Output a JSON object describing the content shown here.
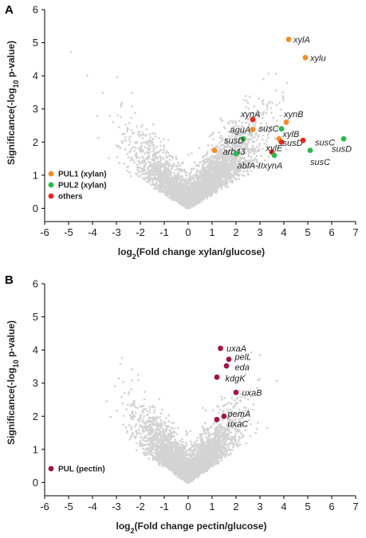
{
  "colors": {
    "background_points": "#d3d3d3",
    "PUL1": "#f28c28",
    "PUL2": "#2db84a",
    "others": "#e8281e",
    "PUL_pectin": "#a3144a",
    "axis": "#000000"
  },
  "chart_data": [
    {
      "panel": "A",
      "type": "scatter",
      "xlabel_prefix": "log",
      "xlabel_sub": "2",
      "xlabel_rest": "(Fold change xylan/glucose)",
      "ylabel_prefix": "Significance(-log",
      "ylabel_sub": "10",
      "ylabel_rest": " p-value)",
      "xlim": [
        -6,
        7
      ],
      "ylim": [
        -0.4,
        6
      ],
      "xticks": [
        -6,
        -5,
        -4,
        -3,
        -2,
        -1,
        0,
        1,
        2,
        3,
        4,
        5,
        6,
        7
      ],
      "yticks": [
        0,
        1,
        2,
        3,
        4,
        5,
        6
      ],
      "background_cloud": "dense grey volcano cloud of genes",
      "legend": [
        {
          "label": "PUL1 (xylan)",
          "color": "#f28c28"
        },
        {
          "label": "PUL2 (xylan)",
          "color": "#2db84a"
        },
        {
          "label": "others",
          "color": "#e8281e"
        }
      ],
      "highlighted": [
        {
          "label": "xylA",
          "x": 4.2,
          "y": 5.1,
          "color": "#f28c28",
          "lx": 4.4,
          "ly": 5.1
        },
        {
          "label": "xylu",
          "x": 4.9,
          "y": 4.55,
          "color": "#f28c28",
          "lx": 5.1,
          "ly": 4.55
        },
        {
          "label": "xynA",
          "x": 2.7,
          "y": 2.68,
          "color": "#e8281e",
          "lx": 2.2,
          "ly": 2.85
        },
        {
          "label": "xynB",
          "x": 4.1,
          "y": 2.6,
          "color": "#f28c28",
          "lx": 4.0,
          "ly": 2.85
        },
        {
          "label": "aguA",
          "x": 2.7,
          "y": 2.38,
          "color": "#f28c28",
          "lx": 1.75,
          "ly": 2.38
        },
        {
          "label": "susC",
          "x": 3.9,
          "y": 2.4,
          "color": "#2db84a",
          "lx": 2.95,
          "ly": 2.42
        },
        {
          "label": "susD",
          "x": 2.3,
          "y": 2.1,
          "color": "#2db84a",
          "lx": 1.5,
          "ly": 2.05
        },
        {
          "label": "xylB",
          "x": 3.8,
          "y": 2.1,
          "color": "#f28c28",
          "lx": 3.95,
          "ly": 2.25
        },
        {
          "label": "susD",
          "x": 3.9,
          "y": 2.0,
          "color": "#e8281e",
          "lx": 3.95,
          "ly": 1.98
        },
        {
          "label": "susC",
          "x": 4.8,
          "y": 2.05,
          "color": "#e8281e",
          "lx": 5.3,
          "ly": 2.0
        },
        {
          "label": "susD",
          "x": 6.5,
          "y": 2.1,
          "color": "#2db84a",
          "lx": 6.0,
          "ly": 1.8
        },
        {
          "label": "arb43",
          "x": 1.1,
          "y": 1.75,
          "color": "#f28c28",
          "lx": 1.45,
          "ly": 1.72
        },
        {
          "label": "xylE",
          "x": 3.5,
          "y": 1.7,
          "color": "#e8281e",
          "lx": 3.25,
          "ly": 1.82
        },
        {
          "label": "susC",
          "x": 5.1,
          "y": 1.75,
          "color": "#2db84a",
          "lx": 5.1,
          "ly": 1.4
        },
        {
          "label": "abfA-IIxynA",
          "x": 2.0,
          "y": 1.65,
          "color": "#2db84a",
          "lx": 2.05,
          "ly": 1.3
        },
        {
          "label": "",
          "x": 3.6,
          "y": 1.6,
          "color": "#2db84a",
          "lx": 0,
          "ly": 0
        }
      ]
    },
    {
      "panel": "B",
      "type": "scatter",
      "xlabel_prefix": "log",
      "xlabel_sub": "2",
      "xlabel_rest": "(Fold change pectin/glucose)",
      "ylabel_prefix": "Significance(-log",
      "ylabel_sub": "10",
      "ylabel_rest": " p-value)",
      "xlim": [
        -6,
        7
      ],
      "ylim": [
        -0.4,
        6
      ],
      "xticks": [
        -6,
        -5,
        -4,
        -3,
        -2,
        -1,
        0,
        1,
        2,
        3,
        4,
        5,
        6,
        7
      ],
      "yticks": [
        0,
        1,
        2,
        3,
        4,
        5,
        6
      ],
      "background_cloud": "dense grey volcano cloud of genes",
      "legend": [
        {
          "label": "PUL (pectin)",
          "color": "#a3144a"
        }
      ],
      "highlighted": [
        {
          "label": "uxaA",
          "x": 1.35,
          "y": 4.05,
          "color": "#a3144a",
          "lx": 1.6,
          "ly": 4.05
        },
        {
          "label": "pelL",
          "x": 1.7,
          "y": 3.72,
          "color": "#a3144a",
          "lx": 1.95,
          "ly": 3.8
        },
        {
          "label": "eda",
          "x": 1.6,
          "y": 3.52,
          "color": "#a3144a",
          "lx": 1.95,
          "ly": 3.48
        },
        {
          "label": "kdgK",
          "x": 1.2,
          "y": 3.18,
          "color": "#a3144a",
          "lx": 1.55,
          "ly": 3.15
        },
        {
          "label": "uxaB",
          "x": 2.0,
          "y": 2.72,
          "color": "#a3144a",
          "lx": 2.25,
          "ly": 2.72
        },
        {
          "label": "pemA",
          "x": 1.5,
          "y": 2.0,
          "color": "#a3144a",
          "lx": 1.65,
          "ly": 2.08
        },
        {
          "label": "uxaC",
          "x": 1.2,
          "y": 1.9,
          "color": "#a3144a",
          "lx": 1.65,
          "ly": 1.78
        }
      ]
    }
  ]
}
